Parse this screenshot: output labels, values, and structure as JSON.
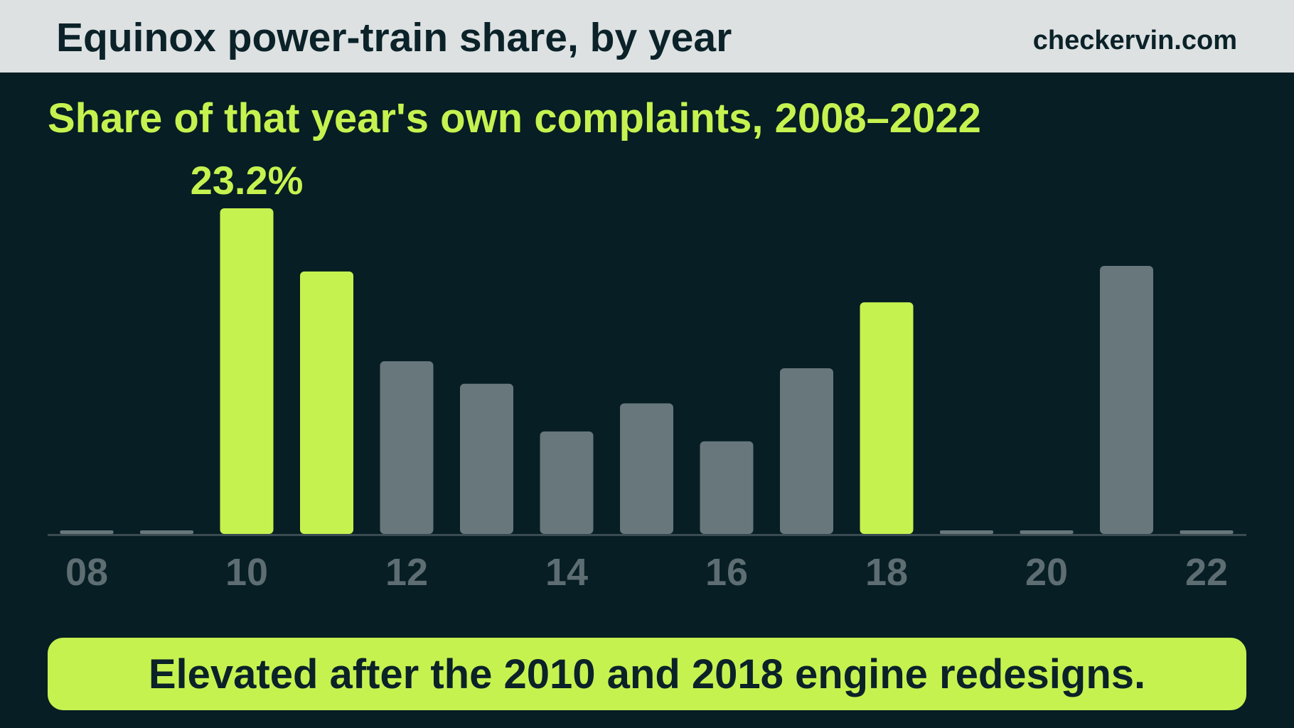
{
  "header": {
    "title": "Equinox power-train share, by year",
    "brand": "checkervin.com"
  },
  "subtitle": "Share of that year's own complaints, 2008–2022",
  "footer": {
    "text": "Elevated after the 2010 and 2018 engine redesigns."
  },
  "colors": {
    "highlight": "#c6f250",
    "muted": "#68777c",
    "background": "#061e24",
    "axis_tick": "#5d6d72"
  },
  "chart_data": {
    "type": "bar",
    "categories": [
      "08",
      "09",
      "10",
      "11",
      "12",
      "13",
      "14",
      "15",
      "16",
      "17",
      "18",
      "19",
      "20",
      "21",
      "22"
    ],
    "tick_labels": [
      "08",
      "10",
      "12",
      "14",
      "16",
      "18",
      "20",
      "22"
    ],
    "values": [
      0,
      0,
      23.2,
      18.7,
      12.3,
      10.7,
      7.3,
      9.3,
      6.6,
      11.8,
      16.5,
      0,
      0,
      19.1,
      0
    ],
    "highlighted": [
      false,
      false,
      true,
      true,
      false,
      false,
      false,
      false,
      false,
      false,
      true,
      false,
      false,
      false,
      false
    ],
    "data_labels": [
      {
        "category": "10",
        "text": "23.2%"
      }
    ],
    "ylim": [
      0,
      23.2
    ],
    "grid": false
  }
}
